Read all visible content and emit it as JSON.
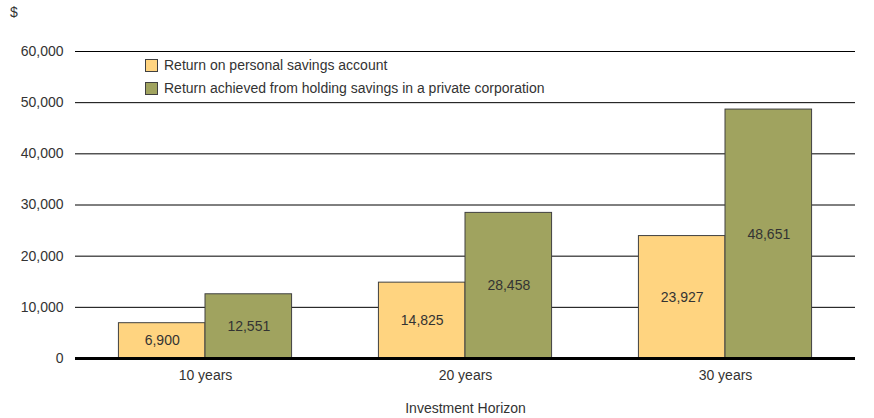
{
  "chart_data": {
    "type": "bar",
    "y_label": "$",
    "x_label": "Investment Horizon",
    "categories": [
      "10 years",
      "20 years",
      "30 years"
    ],
    "series": [
      {
        "name": "Return on personal savings account",
        "color": "#ffd480",
        "values": [
          6900,
          14825,
          23927
        ],
        "value_labels": [
          "6,900",
          "14,825",
          "23,927"
        ]
      },
      {
        "name": "Return achieved from holding savings in a private corporation",
        "color": "#a0a35f",
        "values": [
          12551,
          28458,
          48651
        ],
        "value_labels": [
          "12,551",
          "28,458",
          "48,651"
        ]
      }
    ],
    "ylim": [
      0,
      60000
    ],
    "yticks": [
      0,
      {
        "value": 10000,
        "label": "10,000"
      },
      {
        "value": 20000,
        "label": "20,000"
      },
      {
        "value": 30000,
        "label": "30,000"
      },
      {
        "value": 40000,
        "label": "40,000"
      },
      {
        "value": 50000,
        "label": "50,000"
      },
      {
        "value": 60000,
        "label": "60,000"
      }
    ],
    "grid": true,
    "legend": "top-left",
    "data_labels": true
  }
}
